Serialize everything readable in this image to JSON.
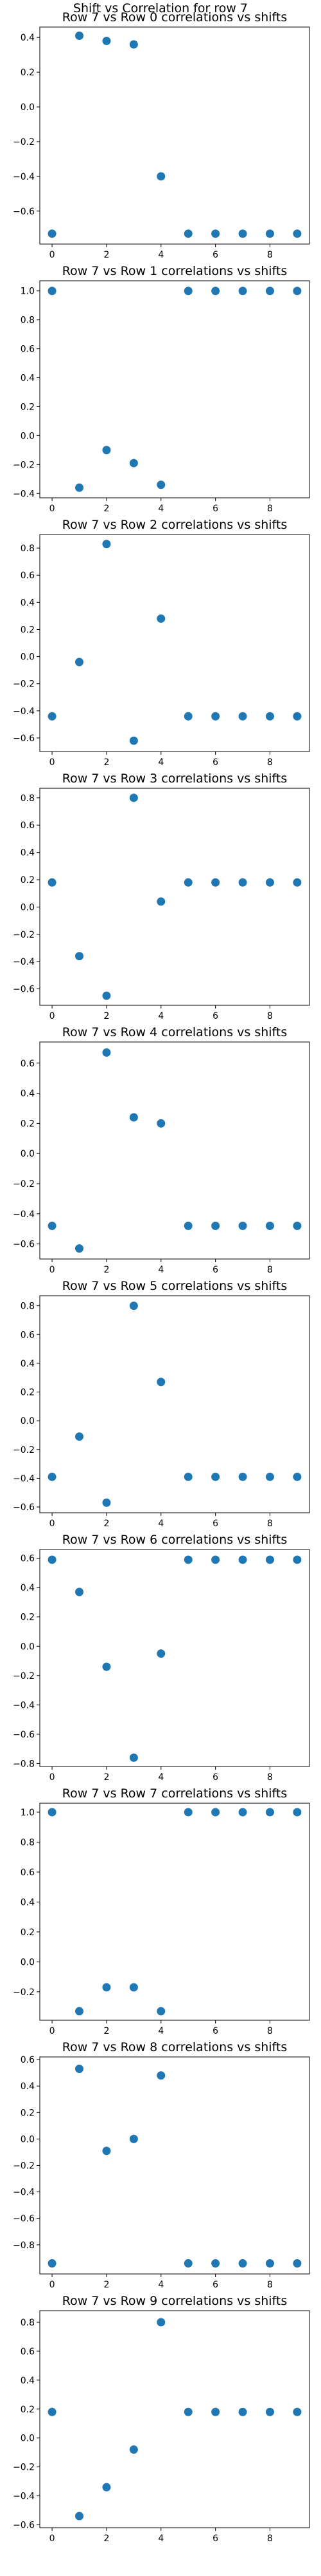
{
  "figure": {
    "suptitle": "Shift vs Correlation for row 7"
  },
  "style": {
    "marker_color": "#1f77b4",
    "axis_color": "#000000",
    "background": "#ffffff"
  },
  "chart_data": [
    {
      "type": "scatter",
      "title": "Row 7 vs Row 0 correlations vs shifts",
      "xlabel": "",
      "ylabel": "",
      "grid": false,
      "xlim": [
        -0.45,
        9.45
      ],
      "ylim": [
        -0.79,
        0.46
      ],
      "xticks": [
        0,
        2,
        4,
        6,
        8
      ],
      "yticks": [
        -0.6,
        -0.4,
        -0.2,
        0.0,
        0.2,
        0.4
      ],
      "ytick_labels": [
        "−0.6",
        "−0.4",
        "−0.2",
        "0.0",
        "0.2",
        "0.4"
      ],
      "x": [
        0,
        1,
        2,
        3,
        4,
        5,
        6,
        7,
        8,
        9
      ],
      "y": [
        -0.73,
        0.41,
        0.38,
        0.36,
        -0.4,
        -0.73,
        -0.73,
        -0.73,
        -0.73,
        -0.73
      ]
    },
    {
      "type": "scatter",
      "title": "Row 7 vs Row 1 correlations vs shifts",
      "xlabel": "",
      "ylabel": "",
      "grid": false,
      "xlim": [
        -0.45,
        9.45
      ],
      "ylim": [
        -0.43,
        1.07
      ],
      "xticks": [
        0,
        2,
        4,
        6,
        8
      ],
      "yticks": [
        -0.4,
        -0.2,
        0.0,
        0.2,
        0.4,
        0.6,
        0.8,
        1.0
      ],
      "ytick_labels": [
        "−0.4",
        "−0.2",
        "0.0",
        "0.2",
        "0.4",
        "0.6",
        "0.8",
        "1.0"
      ],
      "x": [
        0,
        1,
        2,
        3,
        4,
        5,
        6,
        7,
        8,
        9
      ],
      "y": [
        1.0,
        -0.36,
        -0.1,
        -0.19,
        -0.34,
        1.0,
        1.0,
        1.0,
        1.0,
        1.0
      ]
    },
    {
      "type": "scatter",
      "title": "Row 7 vs Row 2 correlations vs shifts",
      "xlabel": "",
      "ylabel": "",
      "grid": false,
      "xlim": [
        -0.45,
        9.45
      ],
      "ylim": [
        -0.7,
        0.9
      ],
      "xticks": [
        0,
        2,
        4,
        6,
        8
      ],
      "yticks": [
        -0.6,
        -0.4,
        -0.2,
        0.0,
        0.2,
        0.4,
        0.6,
        0.8
      ],
      "ytick_labels": [
        "−0.6",
        "−0.4",
        "−0.2",
        "0.0",
        "0.2",
        "0.4",
        "0.6",
        "0.8"
      ],
      "x": [
        0,
        1,
        2,
        3,
        4,
        5,
        6,
        7,
        8,
        9
      ],
      "y": [
        -0.44,
        -0.04,
        0.83,
        -0.62,
        0.28,
        -0.44,
        -0.44,
        -0.44,
        -0.44,
        -0.44
      ]
    },
    {
      "type": "scatter",
      "title": "Row 7 vs Row 3 correlations vs shifts",
      "xlabel": "",
      "ylabel": "",
      "grid": false,
      "xlim": [
        -0.45,
        9.45
      ],
      "ylim": [
        -0.72,
        0.87
      ],
      "xticks": [
        0,
        2,
        4,
        6,
        8
      ],
      "yticks": [
        -0.6,
        -0.4,
        -0.2,
        0.0,
        0.2,
        0.4,
        0.6,
        0.8
      ],
      "ytick_labels": [
        "−0.6",
        "−0.4",
        "−0.2",
        "0.0",
        "0.2",
        "0.4",
        "0.6",
        "0.8"
      ],
      "x": [
        0,
        1,
        2,
        3,
        4,
        5,
        6,
        7,
        8,
        9
      ],
      "y": [
        0.18,
        -0.36,
        -0.65,
        0.8,
        0.04,
        0.18,
        0.18,
        0.18,
        0.18,
        0.18
      ]
    },
    {
      "type": "scatter",
      "title": "Row 7 vs Row 4 correlations vs shifts",
      "xlabel": "",
      "ylabel": "",
      "grid": false,
      "xlim": [
        -0.45,
        9.45
      ],
      "ylim": [
        -0.7,
        0.74
      ],
      "xticks": [
        0,
        2,
        4,
        6,
        8
      ],
      "yticks": [
        -0.6,
        -0.4,
        -0.2,
        0.0,
        0.2,
        0.4,
        0.6
      ],
      "ytick_labels": [
        "−0.6",
        "−0.4",
        "−0.2",
        "0.0",
        "0.2",
        "0.4",
        "0.6"
      ],
      "x": [
        0,
        1,
        2,
        3,
        4,
        5,
        6,
        7,
        8,
        9
      ],
      "y": [
        -0.48,
        -0.63,
        0.67,
        0.24,
        0.2,
        -0.48,
        -0.48,
        -0.48,
        -0.48,
        -0.48
      ]
    },
    {
      "type": "scatter",
      "title": "Row 7 vs Row 5 correlations vs shifts",
      "xlabel": "",
      "ylabel": "",
      "grid": false,
      "xlim": [
        -0.45,
        9.45
      ],
      "ylim": [
        -0.64,
        0.87
      ],
      "xticks": [
        0,
        2,
        4,
        6,
        8
      ],
      "yticks": [
        -0.6,
        -0.4,
        -0.2,
        0.0,
        0.2,
        0.4,
        0.6,
        0.8
      ],
      "ytick_labels": [
        "−0.6",
        "−0.4",
        "−0.2",
        "0.0",
        "0.2",
        "0.4",
        "0.6",
        "0.8"
      ],
      "x": [
        0,
        1,
        2,
        3,
        4,
        5,
        6,
        7,
        8,
        9
      ],
      "y": [
        -0.39,
        -0.11,
        -0.57,
        0.8,
        0.27,
        -0.39,
        -0.39,
        -0.39,
        -0.39,
        -0.39
      ]
    },
    {
      "type": "scatter",
      "title": "Row 7 vs Row 6 correlations vs shifts",
      "xlabel": "",
      "ylabel": "",
      "grid": false,
      "xlim": [
        -0.45,
        9.45
      ],
      "ylim": [
        -0.82,
        0.66
      ],
      "xticks": [
        0,
        2,
        4,
        6,
        8
      ],
      "yticks": [
        -0.8,
        -0.6,
        -0.4,
        -0.2,
        0.0,
        0.2,
        0.4,
        0.6
      ],
      "ytick_labels": [
        "−0.8",
        "−0.6",
        "−0.4",
        "−0.2",
        "0.0",
        "0.2",
        "0.4",
        "0.6"
      ],
      "x": [
        0,
        1,
        2,
        3,
        4,
        5,
        6,
        7,
        8,
        9
      ],
      "y": [
        0.59,
        0.37,
        -0.14,
        -0.76,
        -0.05,
        0.59,
        0.59,
        0.59,
        0.59,
        0.59
      ]
    },
    {
      "type": "scatter",
      "title": "Row 7 vs Row 7 correlations vs shifts",
      "xlabel": "",
      "ylabel": "",
      "grid": false,
      "xlim": [
        -0.45,
        9.45
      ],
      "ylim": [
        -0.39,
        1.06
      ],
      "xticks": [
        0,
        2,
        4,
        6,
        8
      ],
      "yticks": [
        -0.2,
        0.0,
        0.2,
        0.4,
        0.6,
        0.8,
        1.0
      ],
      "ytick_labels": [
        "−0.2",
        "0.0",
        "0.2",
        "0.4",
        "0.6",
        "0.8",
        "1.0"
      ],
      "x": [
        0,
        1,
        2,
        3,
        4,
        5,
        6,
        7,
        8,
        9
      ],
      "y": [
        1.0,
        -0.33,
        -0.17,
        -0.17,
        -0.33,
        1.0,
        1.0,
        1.0,
        1.0,
        1.0
      ]
    },
    {
      "type": "scatter",
      "title": "Row 7 vs Row 8 correlations vs shifts",
      "xlabel": "",
      "ylabel": "",
      "grid": false,
      "xlim": [
        -0.45,
        9.45
      ],
      "ylim": [
        -1.02,
        0.62
      ],
      "xticks": [
        0,
        2,
        4,
        6,
        8
      ],
      "yticks": [
        -0.8,
        -0.6,
        -0.4,
        -0.2,
        0.0,
        0.2,
        0.4,
        0.6
      ],
      "ytick_labels": [
        "−0.8",
        "−0.6",
        "−0.4",
        "−0.2",
        "0.0",
        "0.2",
        "0.4",
        "0.6"
      ],
      "x": [
        0,
        1,
        2,
        3,
        4,
        5,
        6,
        7,
        8,
        9
      ],
      "y": [
        -0.94,
        0.53,
        -0.09,
        0.0,
        0.48,
        -0.94,
        -0.94,
        -0.94,
        -0.94,
        -0.94
      ]
    },
    {
      "type": "scatter",
      "title": "Row 7 vs Row 9 correlations vs shifts",
      "xlabel": "",
      "ylabel": "",
      "grid": false,
      "xlim": [
        -0.45,
        9.45
      ],
      "ylim": [
        -0.62,
        0.88
      ],
      "xticks": [
        0,
        2,
        4,
        6,
        8
      ],
      "yticks": [
        -0.6,
        -0.4,
        -0.2,
        0.0,
        0.2,
        0.4,
        0.6,
        0.8
      ],
      "ytick_labels": [
        "−0.6",
        "−0.4",
        "−0.2",
        "0.0",
        "0.2",
        "0.4",
        "0.6",
        "0.8"
      ],
      "x": [
        0,
        1,
        2,
        3,
        4,
        5,
        6,
        7,
        8,
        9
      ],
      "y": [
        0.18,
        -0.54,
        -0.34,
        -0.08,
        0.8,
        0.18,
        0.18,
        0.18,
        0.18,
        0.18
      ]
    }
  ]
}
